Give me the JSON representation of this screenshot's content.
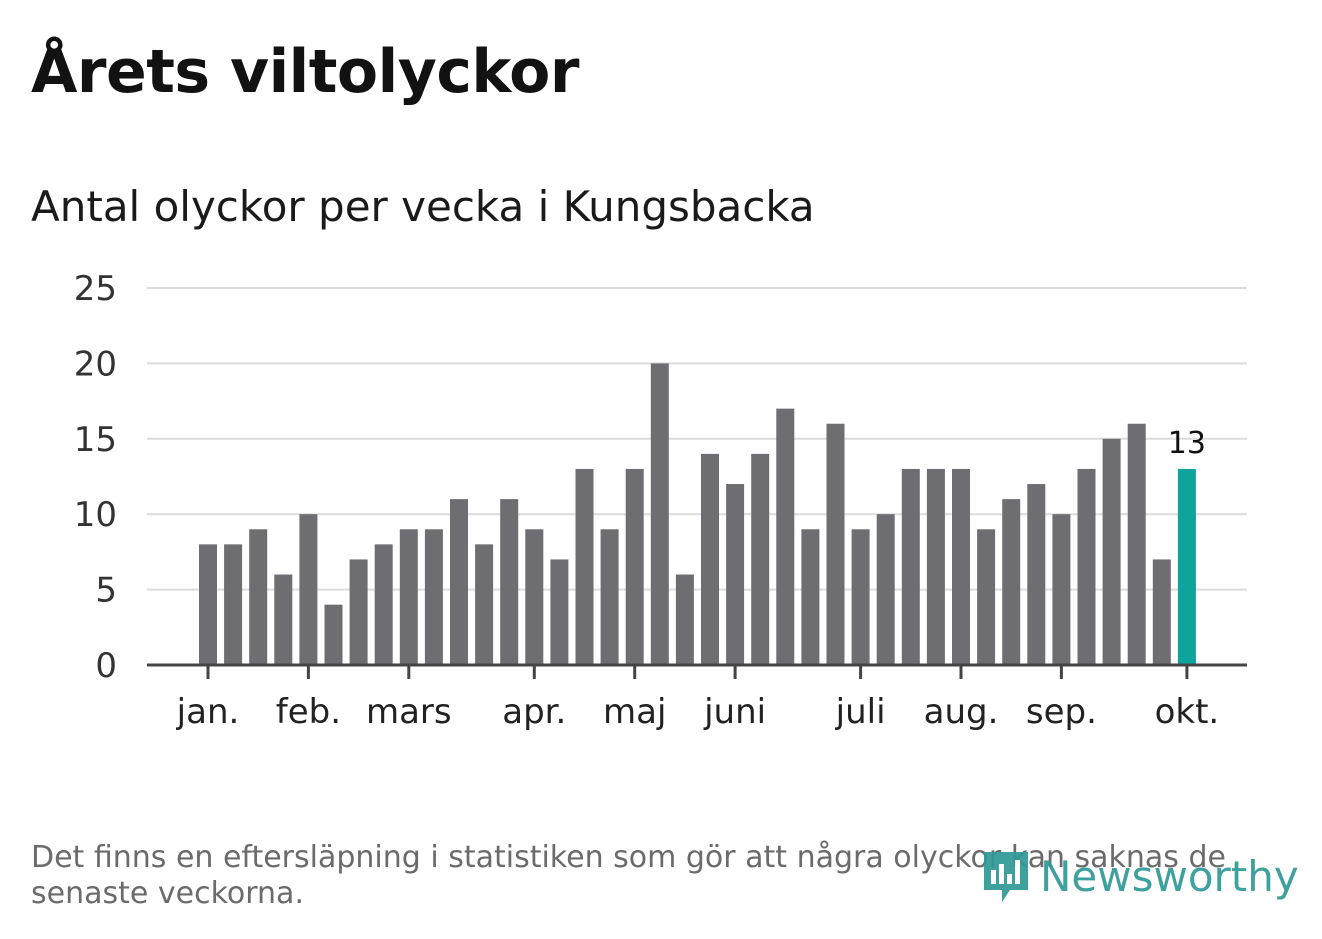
{
  "title": "Årets viltolyckor",
  "subtitle": "Antal olyckor per vecka i Kungsbacka",
  "footnote": "Det finns en eftersläpning i statistiken som gör att några olyckor kan saknas de senaste veckorna.",
  "logo": {
    "text": "Newsworthy",
    "icon": "chart-logo-icon"
  },
  "colors": {
    "bar": "#6e6d72",
    "highlight": "#0ea39b",
    "grid": "#dcdcdc",
    "axis": "#444444",
    "logo": "#2f9a96"
  },
  "chart_data": {
    "type": "bar",
    "title": "Antal olyckor per vecka i Kungsbacka",
    "xlabel": "",
    "ylabel": "",
    "ylim": [
      0,
      25
    ],
    "yticks": [
      0,
      5,
      10,
      15,
      20,
      25
    ],
    "grid": true,
    "values": [
      8,
      8,
      9,
      6,
      10,
      4,
      7,
      8,
      9,
      9,
      11,
      8,
      11,
      9,
      7,
      13,
      9,
      13,
      20,
      6,
      14,
      12,
      14,
      17,
      9,
      16,
      9,
      10,
      13,
      13,
      13,
      9,
      11,
      12,
      10,
      13,
      15,
      16,
      7,
      13
    ],
    "highlight_index": 39,
    "highlight_label": "13",
    "month_labels": [
      {
        "label": "jan.",
        "bar": 0
      },
      {
        "label": "feb.",
        "bar": 4
      },
      {
        "label": "mars",
        "bar": 8
      },
      {
        "label": "apr.",
        "bar": 13
      },
      {
        "label": "maj",
        "bar": 17
      },
      {
        "label": "juni",
        "bar": 21
      },
      {
        "label": "juli",
        "bar": 26
      },
      {
        "label": "aug.",
        "bar": 30
      },
      {
        "label": "sep.",
        "bar": 34
      },
      {
        "label": "okt.",
        "bar": 39
      }
    ]
  }
}
